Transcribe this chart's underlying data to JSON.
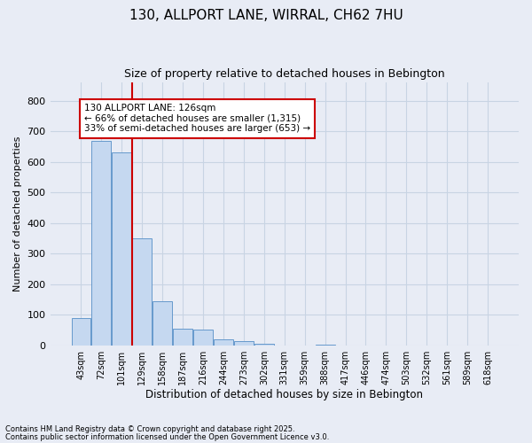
{
  "title1": "130, ALLPORT LANE, WIRRAL, CH62 7HU",
  "title2": "Size of property relative to detached houses in Bebington",
  "xlabel": "Distribution of detached houses by size in Bebington",
  "ylabel": "Number of detached properties",
  "categories": [
    "43sqm",
    "72sqm",
    "101sqm",
    "129sqm",
    "158sqm",
    "187sqm",
    "216sqm",
    "244sqm",
    "273sqm",
    "302sqm",
    "331sqm",
    "359sqm",
    "388sqm",
    "417sqm",
    "446sqm",
    "474sqm",
    "503sqm",
    "532sqm",
    "561sqm",
    "589sqm",
    "618sqm"
  ],
  "bar_values": [
    90,
    670,
    630,
    350,
    145,
    55,
    50,
    18,
    14,
    5,
    0,
    0,
    1,
    0,
    0,
    0,
    0,
    0,
    0,
    0,
    0
  ],
  "bar_color": "#c5d8f0",
  "bar_edge_color": "#6699cc",
  "grid_color": "#c8d4e3",
  "background_color": "#e8ecf5",
  "vline_color": "#cc0000",
  "annotation_text": "130 ALLPORT LANE: 126sqm\n← 66% of detached houses are smaller (1,315)\n33% of semi-detached houses are larger (653) →",
  "annotation_box_color": "#ffffff",
  "annotation_box_edge": "#cc0000",
  "ylim": [
    0,
    860
  ],
  "yticks": [
    0,
    100,
    200,
    300,
    400,
    500,
    600,
    700,
    800
  ],
  "footer1": "Contains HM Land Registry data © Crown copyright and database right 2025.",
  "footer2": "Contains public sector information licensed under the Open Government Licence v3.0."
}
